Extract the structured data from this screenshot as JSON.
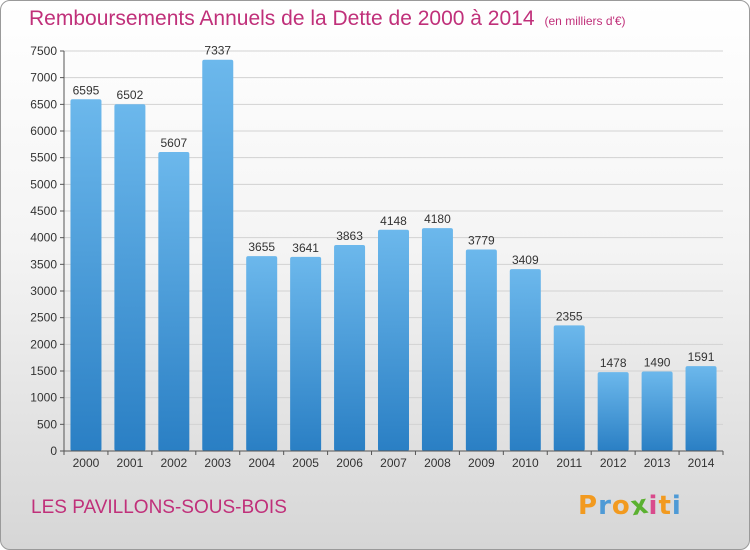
{
  "title": "Remboursements Annuels de la Dette de 2000 à 2014",
  "subtitle": "(en milliers d'€)",
  "location": "LES PAVILLONS-SOUS-BOIS",
  "logo": {
    "text": "Proxiti",
    "letters": [
      "P",
      "r",
      "o",
      "x",
      "i",
      "t",
      "i"
    ],
    "colors": [
      "#f29a1f",
      "#4e9ad6",
      "#f29a1f",
      "#5bb130",
      "#d94a8c",
      "#f29a1f",
      "#4e9ad6"
    ]
  },
  "colors": {
    "title": "#c0307a",
    "bar_top": "#6cb8ec",
    "bar_bottom": "#2a7fc4"
  },
  "chart_data": {
    "type": "bar",
    "categories": [
      "2000",
      "2001",
      "2002",
      "2003",
      "2004",
      "2005",
      "2006",
      "2007",
      "2008",
      "2009",
      "2010",
      "2011",
      "2012",
      "2013",
      "2014"
    ],
    "values": [
      6595,
      6502,
      5607,
      7337,
      3655,
      3641,
      3863,
      4148,
      4180,
      3779,
      3409,
      2355,
      1478,
      1490,
      1591
    ],
    "ylim": [
      0,
      7500
    ],
    "yticks": [
      0,
      500,
      1000,
      1500,
      2000,
      2500,
      3000,
      3500,
      4000,
      4500,
      5000,
      5500,
      6000,
      6500,
      7000,
      7500
    ],
    "grid": true,
    "data_labels": true
  }
}
